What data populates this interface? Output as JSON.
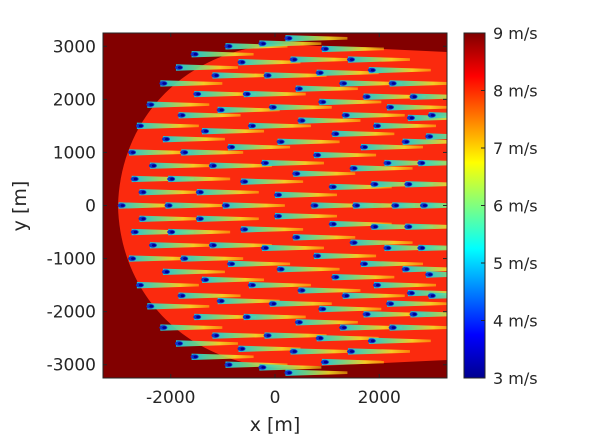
{
  "chart_data": {
    "type": "heatmap",
    "title": "",
    "xlabel": "x [m]",
    "ylabel": "y [m]",
    "xlim": [
      -3300,
      3300
    ],
    "ylim": [
      -3250,
      3250
    ],
    "x_ticks": [
      -2000,
      0,
      2000
    ],
    "x_tick_labels": [
      "-2000",
      "0",
      "2000"
    ],
    "y_ticks": [
      3000,
      2000,
      1000,
      0,
      -1000,
      -2000,
      -3000
    ],
    "y_tick_labels": [
      "3000",
      "2000",
      "1000",
      "0",
      "-1000",
      "-2000",
      "-3000"
    ],
    "background_value": 9,
    "colorbar": {
      "colormap": "jet",
      "range": [
        3,
        9
      ],
      "unit": "m/s",
      "tick_values": [
        9,
        8,
        7,
        6,
        5,
        4,
        3
      ],
      "tick_labels": [
        "9 m/s",
        "8 m/s",
        "7 m/s",
        "6 m/s",
        "5 m/s",
        "4 m/s",
        "3 m/s"
      ]
    },
    "turbines": [
      [
        -3000,
        0
      ],
      [
        -2800,
        1000
      ],
      [
        -2800,
        -1000
      ],
      [
        -2750,
        500
      ],
      [
        -2750,
        -500
      ],
      [
        -2650,
        1500
      ],
      [
        -2650,
        -1500
      ],
      [
        -2600,
        250
      ],
      [
        -2600,
        -250
      ],
      [
        -2450,
        1900
      ],
      [
        -2450,
        -1900
      ],
      [
        -2400,
        750
      ],
      [
        -2400,
        -750
      ],
      [
        -2200,
        2300
      ],
      [
        -2200,
        -2300
      ],
      [
        -2150,
        1250
      ],
      [
        -2150,
        -1250
      ],
      [
        -2100,
        0
      ],
      [
        -2050,
        500
      ],
      [
        -2050,
        -500
      ],
      [
        -1900,
        2600
      ],
      [
        -1900,
        -2600
      ],
      [
        -1850,
        1700
      ],
      [
        -1850,
        -1700
      ],
      [
        -1800,
        1000
      ],
      [
        -1800,
        -1000
      ],
      [
        -1600,
        2850
      ],
      [
        -1600,
        -2850
      ],
      [
        -1550,
        2100
      ],
      [
        -1550,
        -2100
      ],
      [
        -1500,
        250
      ],
      [
        -1500,
        -250
      ],
      [
        -1400,
        1400
      ],
      [
        -1400,
        -1400
      ],
      [
        -1250,
        750
      ],
      [
        -1250,
        -750
      ],
      [
        -1200,
        2450
      ],
      [
        -1200,
        -2450
      ],
      [
        -1100,
        1800
      ],
      [
        -1100,
        -1800
      ],
      [
        -1000,
        0
      ],
      [
        -950,
        3000
      ],
      [
        -950,
        -3000
      ],
      [
        -900,
        1100
      ],
      [
        -900,
        -1100
      ],
      [
        -700,
        2700
      ],
      [
        -700,
        -2700
      ],
      [
        -650,
        450
      ],
      [
        -650,
        -450
      ],
      [
        -600,
        2100
      ],
      [
        -600,
        -2100
      ],
      [
        -500,
        1500
      ],
      [
        -500,
        -1500
      ],
      [
        -300,
        3050
      ],
      [
        -300,
        -3050
      ],
      [
        -250,
        800
      ],
      [
        -250,
        -800
      ],
      [
        -200,
        2450
      ],
      [
        -200,
        -2450
      ],
      [
        -100,
        1850
      ],
      [
        -100,
        -1850
      ],
      [
        0,
        200
      ],
      [
        0,
        -200
      ],
      [
        50,
        1200
      ],
      [
        50,
        -1200
      ],
      [
        200,
        3150
      ],
      [
        200,
        -3150
      ],
      [
        300,
        2750
      ],
      [
        300,
        -2750
      ],
      [
        350,
        600
      ],
      [
        350,
        -600
      ],
      [
        400,
        2200
      ],
      [
        400,
        -2200
      ],
      [
        450,
        1600
      ],
      [
        450,
        -1600
      ],
      [
        700,
        0
      ],
      [
        750,
        950
      ],
      [
        750,
        -950
      ],
      [
        800,
        2500
      ],
      [
        800,
        -2500
      ],
      [
        850,
        1950
      ],
      [
        850,
        -1950
      ],
      [
        900,
        2950
      ],
      [
        900,
        -2950
      ],
      [
        1050,
        350
      ],
      [
        1050,
        -350
      ],
      [
        1100,
        1350
      ],
      [
        1100,
        -1350
      ],
      [
        1250,
        2300
      ],
      [
        1250,
        -2300
      ],
      [
        1300,
        1700
      ],
      [
        1300,
        -1700
      ],
      [
        1400,
        2750
      ],
      [
        1400,
        -2750
      ],
      [
        1450,
        700
      ],
      [
        1450,
        -700
      ],
      [
        1500,
        0
      ],
      [
        1650,
        1100
      ],
      [
        1650,
        -1100
      ],
      [
        1700,
        2050
      ],
      [
        1700,
        -2050
      ],
      [
        1800,
        2550
      ],
      [
        1800,
        -2550
      ],
      [
        1850,
        400
      ],
      [
        1850,
        -400
      ],
      [
        1900,
        1500
      ],
      [
        1900,
        -1500
      ],
      [
        2100,
        800
      ],
      [
        2100,
        -800
      ],
      [
        2150,
        1850
      ],
      [
        2150,
        -1850
      ],
      [
        2200,
        2300
      ],
      [
        2200,
        -2300
      ],
      [
        2250,
        0
      ],
      [
        2450,
        1200
      ],
      [
        2450,
        -1200
      ],
      [
        2500,
        400
      ],
      [
        2500,
        -400
      ],
      [
        2550,
        1650
      ],
      [
        2550,
        -1650
      ],
      [
        2600,
        2050
      ],
      [
        2600,
        -2050
      ],
      [
        2750,
        800
      ],
      [
        2750,
        -800
      ],
      [
        2800,
        0
      ],
      [
        2900,
        1300
      ],
      [
        2900,
        -1300
      ],
      [
        2950,
        1700
      ],
      [
        2950,
        -1700
      ]
    ]
  }
}
